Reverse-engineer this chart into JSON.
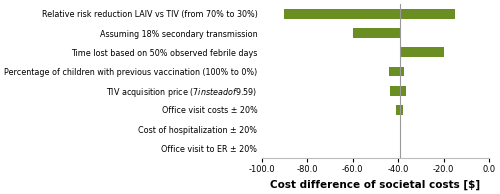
{
  "labels": [
    "Relative risk reduction LAIV vs TIV (from 70% to 30%)",
    "Assuming 18% secondary transmission",
    "Time lost based on 50% observed febrile days",
    "Percentage of children with previous vaccination (100% to 0%)",
    "TIV acquisition price ($7 instead of $9.59)",
    "Office visit costs ± 20%",
    "Cost of hospitalization ± 20%",
    "Office visit to ER ± 20%"
  ],
  "bar_left": [
    -90.0,
    -60.0,
    -39.0,
    -44.0,
    -43.5,
    -41.0,
    -39.0,
    -39.0
  ],
  "bar_right": [
    -15.0,
    -39.0,
    -20.0,
    -37.5,
    -36.5,
    -38.0,
    -39.0,
    -39.0
  ],
  "bar_color": "#6b8e23",
  "base_case": -39.0,
  "xlim": [
    -100.0,
    0.0
  ],
  "xticks": [
    -100.0,
    -80.0,
    -60.0,
    -40.0,
    -20.0,
    0.0
  ],
  "xtick_labels": [
    "-100.0",
    "-80.0",
    "-60.0",
    "-40.0",
    "-20.0",
    "0.0"
  ],
  "xlabel": "Cost difference of societal costs [$]",
  "figsize": [
    5.0,
    1.94
  ],
  "dpi": 100,
  "label_fontsize": 5.8,
  "xlabel_fontsize": 7.5,
  "tick_fontsize": 6.0,
  "bar_height": 0.5
}
